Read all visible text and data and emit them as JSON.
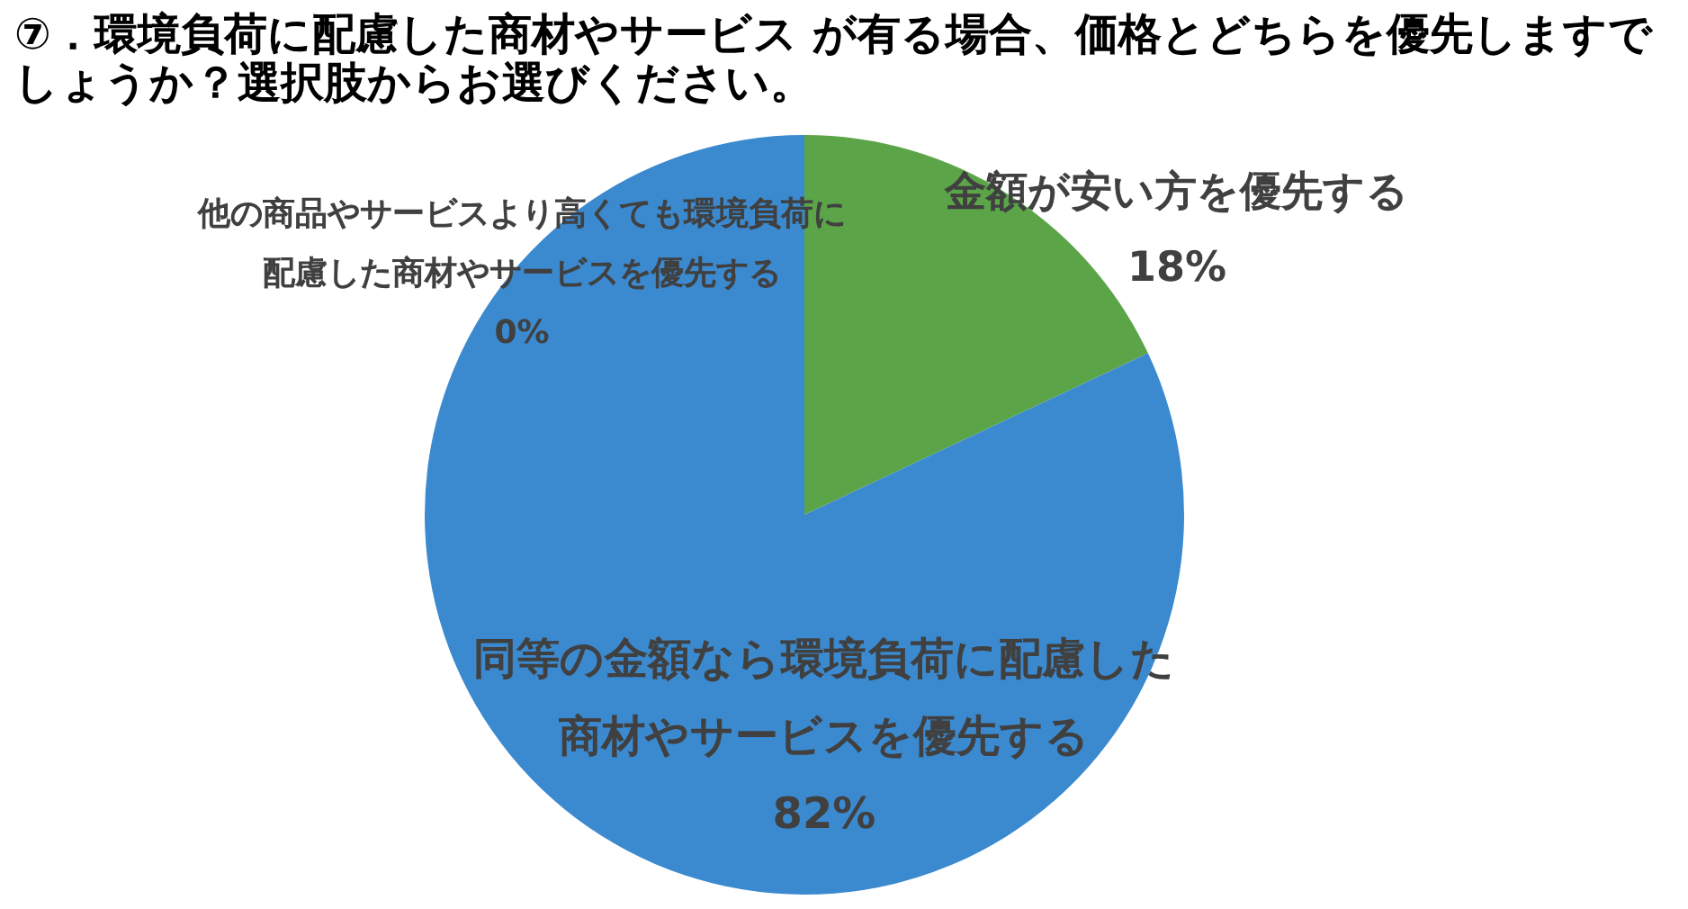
{
  "chart_data": {
    "type": "pie",
    "title": "⑦．環境負荷に配慮した商材やサービス が有る場合、価格とどちらを優先しますでしょうか？選択肢からお選びください。",
    "categories": [
      "金額が安い方を優先する",
      "同等の金額なら環境負荷に配慮した商材やサービスを優先する",
      "他の商品やサービスより高くても環境負荷に配慮した商材やサービスを優先する"
    ],
    "values": [
      18,
      82,
      0
    ],
    "colors": [
      "#5ba548",
      "#3b8ad0",
      "#a5a5a5"
    ],
    "value_labels": [
      "18%",
      "82%",
      "0%"
    ]
  }
}
